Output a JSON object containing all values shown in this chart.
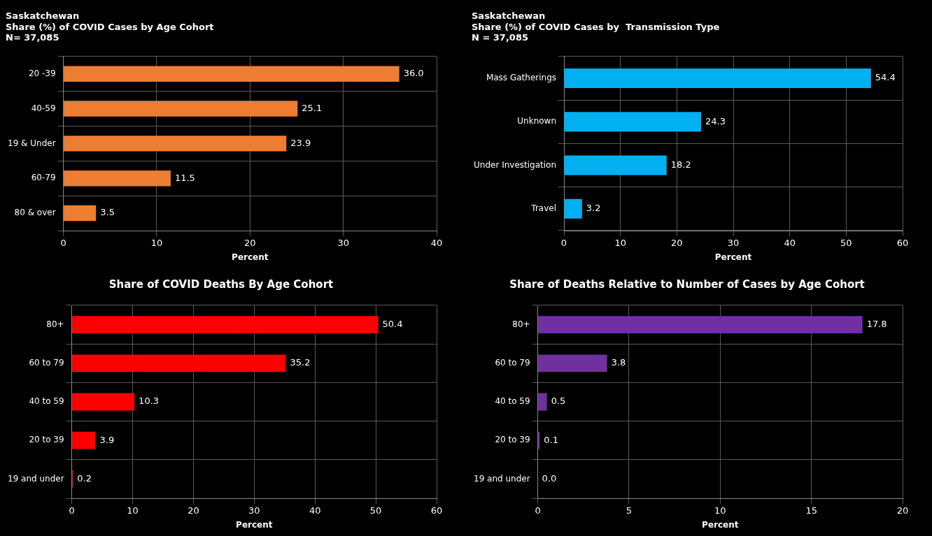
{
  "chart_data": [
    {
      "type": "bar",
      "orientation": "horizontal",
      "title": "Saskatchewan\nShare (%) of COVID Cases by Age Cohort\nN= 37,085",
      "xlabel": "Percent",
      "categories": [
        "20 -39",
        "40-59",
        "19 & Under",
        "60-79",
        "80 & over"
      ],
      "values": [
        36.0,
        25.1,
        23.9,
        11.5,
        3.5
      ],
      "value_labels": [
        "36.0",
        "25.1",
        "23.9",
        "11.5",
        "3.5"
      ],
      "color": "#ed7d31",
      "xlim": [
        0,
        40
      ],
      "xticks": [
        0,
        10,
        20,
        30,
        40
      ],
      "grid": true,
      "legend": false
    },
    {
      "type": "bar",
      "orientation": "horizontal",
      "title": "Saskatchewan\nShare (%) of COVID Cases by  Transmission Type\nN = 37,085",
      "xlabel": "Percent",
      "categories": [
        "Mass Gatherings",
        "Unknown",
        "Under Investigation",
        "Travel"
      ],
      "values": [
        54.4,
        24.3,
        18.2,
        3.2
      ],
      "value_labels": [
        "54.4",
        "24.3",
        "18.2",
        "3.2"
      ],
      "color": "#00b0f0",
      "xlim": [
        0,
        60
      ],
      "xticks": [
        0,
        10,
        20,
        30,
        40,
        50,
        60
      ],
      "grid": true,
      "legend": false
    },
    {
      "type": "bar",
      "orientation": "horizontal",
      "title": "Share of COVID Deaths By Age Cohort",
      "xlabel": "Percent",
      "categories": [
        "80+",
        "60 to 79",
        "40 to 59",
        "20 to 39",
        "19 and under"
      ],
      "values": [
        50.4,
        35.2,
        10.3,
        3.9,
        0.2
      ],
      "value_labels": [
        "50.4",
        "35.2",
        "10.3",
        "3.9",
        "0.2"
      ],
      "color": "#ff0000",
      "xlim": [
        0,
        60
      ],
      "xticks": [
        0,
        10,
        20,
        30,
        40,
        50,
        60
      ],
      "grid": true,
      "legend": false
    },
    {
      "type": "bar",
      "orientation": "horizontal",
      "title": "Share of Deaths Relative to Number of Cases by Age Cohort",
      "xlabel": "Percent",
      "categories": [
        "80+",
        "60 to 79",
        "40 to 59",
        "20 to 39",
        "19 and under"
      ],
      "values": [
        17.8,
        3.8,
        0.5,
        0.1,
        0.0
      ],
      "value_labels": [
        "17.8",
        "3.8",
        "0.5",
        "0.1",
        "0.0"
      ],
      "color": "#7030a0",
      "xlim": [
        0,
        20
      ],
      "xticks": [
        0,
        5,
        10,
        15,
        20
      ],
      "grid": true,
      "legend": false
    }
  ]
}
